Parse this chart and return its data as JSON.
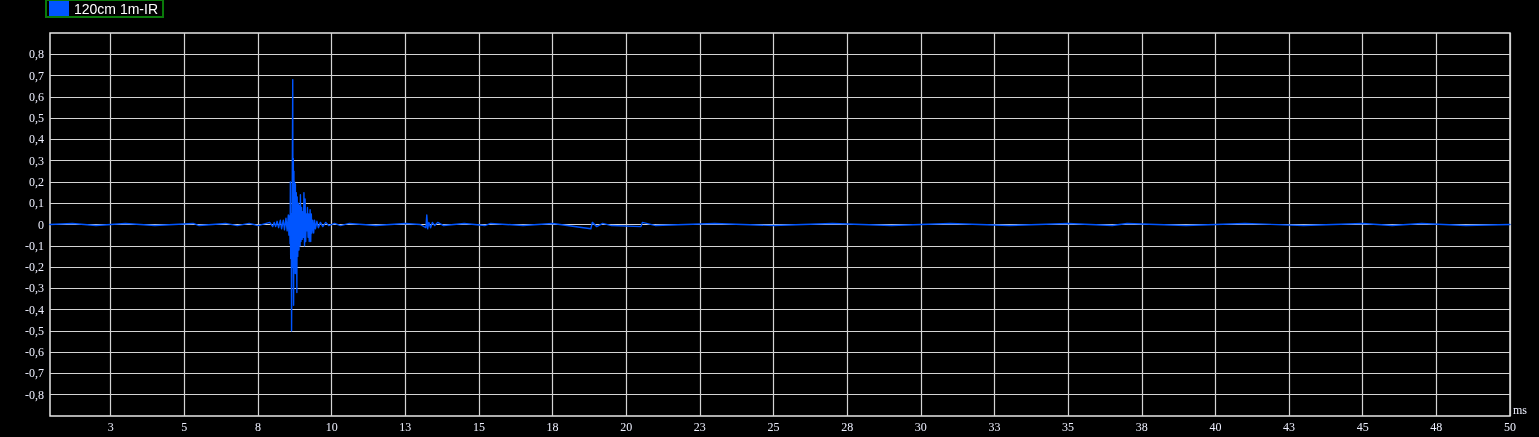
{
  "chart_data": {
    "type": "line",
    "xlabel": "ms",
    "x": [
      0.44,
      1.2,
      2.0,
      3.0,
      4.0,
      5.3,
      5.5,
      6.4,
      6.8,
      7.2,
      7.5,
      7.9,
      8.0,
      8.05,
      8.1,
      8.15,
      8.2,
      8.26,
      8.3,
      8.36,
      8.4,
      8.45,
      8.49,
      8.53,
      8.55,
      8.57,
      8.59,
      8.6,
      8.61,
      8.63,
      8.64,
      8.66,
      8.68,
      8.69,
      8.7,
      8.71,
      8.72,
      8.73,
      8.74,
      8.75,
      8.77,
      8.78,
      8.8,
      8.82,
      8.83,
      8.85,
      8.87,
      8.89,
      8.91,
      8.93,
      8.94,
      8.96,
      8.98,
      9.0,
      9.02,
      9.04,
      9.06,
      9.08,
      9.1,
      9.12,
      9.14,
      9.16,
      9.18,
      9.2,
      9.22,
      9.24,
      9.27,
      9.29,
      9.31,
      9.33,
      9.36,
      9.39,
      9.42,
      9.45,
      9.5,
      9.55,
      9.62,
      9.7,
      9.8,
      9.9,
      10.1,
      10.3,
      10.6,
      11.5,
      12.5,
      13.0,
      13.2,
      13.23,
      13.26,
      13.3,
      13.36,
      13.42,
      13.5,
      13.6,
      13.8,
      14.5,
      15.2,
      15.4,
      16.5,
      17.5,
      18.8,
      18.85,
      19.0,
      19.2,
      19.5,
      20.5,
      20.55,
      21,
      23,
      25,
      27,
      29,
      31,
      33,
      35,
      36.5,
      37,
      39,
      41,
      43,
      45,
      46,
      47,
      48.5,
      50
    ],
    "series": [
      {
        "name": "120cm 1m-IR",
        "color": "#0055ff",
        "values": [
          0,
          0.005,
          -0.005,
          0.005,
          -0.005,
          0.005,
          -0.005,
          0.005,
          -0.005,
          0.005,
          -0.005,
          0.01,
          -0.01,
          0.01,
          -0.01,
          0.015,
          -0.015,
          0.02,
          -0.02,
          0.02,
          -0.025,
          0.03,
          -0.03,
          0.045,
          -0.05,
          0.04,
          -0.09,
          0.2,
          -0.16,
          0.05,
          -0.5,
          0.1,
          0.68,
          -0.2,
          0.31,
          -0.38,
          0.25,
          -0.23,
          0.2,
          -0.2,
          0.19,
          -0.23,
          0.15,
          -0.32,
          0.13,
          -0.15,
          0.1,
          -0.12,
          0.09,
          -0.1,
          0.14,
          -0.08,
          0.08,
          -0.07,
          0.06,
          -0.06,
          0.15,
          -0.1,
          0.12,
          -0.08,
          0.05,
          -0.03,
          0.08,
          -0.06,
          0.05,
          -0.08,
          0.07,
          -0.08,
          0.05,
          -0.04,
          0.02,
          -0.04,
          0.02,
          -0.02,
          0.015,
          -0.015,
          0.01,
          -0.01,
          0.01,
          -0.005,
          0.005,
          -0.005,
          0.005,
          -0.005,
          0.005,
          0,
          -0.015,
          0.045,
          -0.02,
          0.01,
          -0.015,
          0.01,
          -0.005,
          0.01,
          -0.005,
          0.005,
          -0.005,
          0.005,
          -0.005,
          0.005,
          -0.02,
          0.01,
          -0.01,
          0.005,
          -0.005,
          -0.01,
          0.01,
          -0.005,
          0.005,
          -0.005,
          0.005,
          -0.005,
          0.005,
          -0.005,
          0.005,
          -0.005,
          0.005,
          -0.005,
          0.005,
          -0.005,
          0.005,
          -0.005,
          0.005,
          -0.005,
          0
        ]
      }
    ],
    "xlim": [
      0.44,
      50
    ],
    "ylim": [
      -0.9,
      0.9
    ],
    "xticks": [
      {
        "value": 2.5,
        "label": "3"
      },
      5,
      {
        "value": 7.5,
        "label": "8"
      },
      10,
      {
        "value": 12.5,
        "label": "13"
      },
      15,
      {
        "value": 17.5,
        "label": "18"
      },
      20,
      {
        "value": 22.5,
        "label": "23"
      },
      25,
      {
        "value": 27.5,
        "label": "28"
      },
      30,
      {
        "value": 32.5,
        "label": "33"
      },
      35,
      {
        "value": 37.5,
        "label": "38"
      },
      40,
      {
        "value": 42.5,
        "label": "43"
      },
      45,
      {
        "value": 47.5,
        "label": "48"
      },
      50
    ],
    "yticks": [
      {
        "value": -0.8,
        "label": "-0,8"
      },
      {
        "value": -0.7,
        "label": "-0,7"
      },
      {
        "value": -0.6,
        "label": "-0,6"
      },
      {
        "value": -0.5,
        "label": "-0,5"
      },
      {
        "value": -0.4,
        "label": "-0,4"
      },
      {
        "value": -0.3,
        "label": "-0,3"
      },
      {
        "value": -0.2,
        "label": "-0,2"
      },
      {
        "value": -0.1,
        "label": "-0,1"
      },
      0,
      {
        "value": 0.1,
        "label": "0,1"
      },
      {
        "value": 0.2,
        "label": "0,2"
      },
      {
        "value": 0.3,
        "label": "0,3"
      },
      {
        "value": 0.4,
        "label": "0,4"
      },
      {
        "value": 0.5,
        "label": "0,5"
      },
      {
        "value": 0.6,
        "label": "0,6"
      },
      {
        "value": 0.7,
        "label": "0,7"
      },
      {
        "value": 0.8,
        "label": "0,8"
      }
    ],
    "grid": true,
    "legend": "top left",
    "marker": "none",
    "line_style": "solid"
  }
}
